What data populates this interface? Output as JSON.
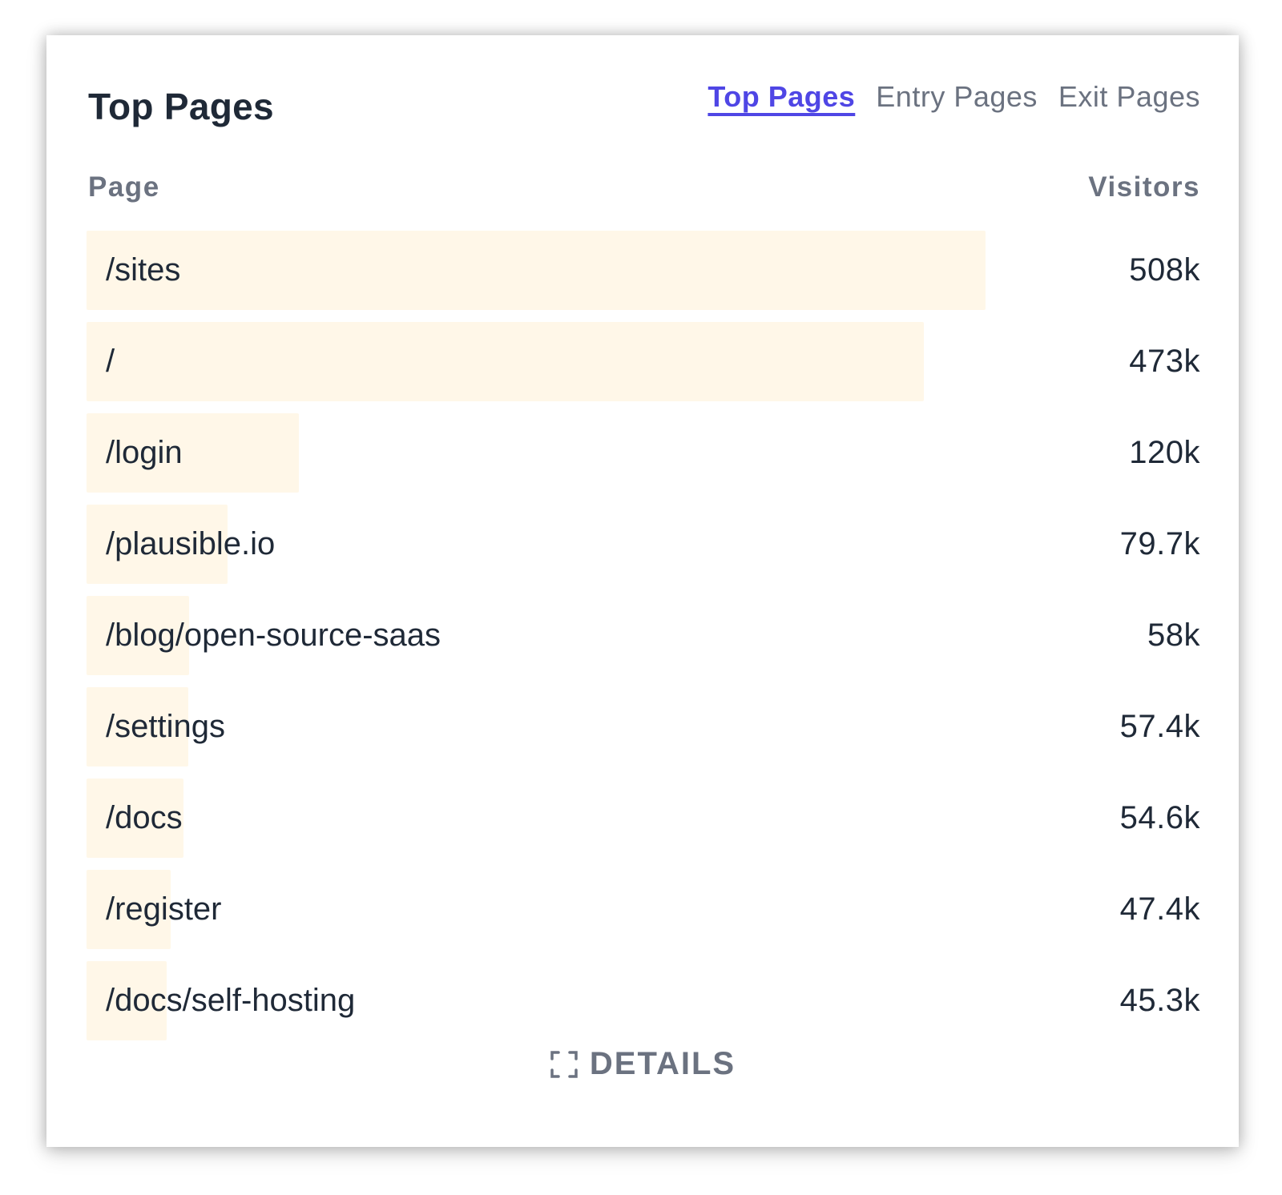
{
  "card": {
    "title": "Top Pages",
    "tabs": [
      {
        "label": "Top Pages",
        "active": true
      },
      {
        "label": "Entry Pages",
        "active": false
      },
      {
        "label": "Exit Pages",
        "active": false
      }
    ]
  },
  "table": {
    "columns": {
      "page": "Page",
      "visitors": "Visitors"
    },
    "bar_color": "#fff7e8",
    "rows": [
      {
        "page": "/sites",
        "visitors": "508k",
        "count": 508000
      },
      {
        "page": "/",
        "visitors": "473k",
        "count": 473000
      },
      {
        "page": "/login",
        "visitors": "120k",
        "count": 120000
      },
      {
        "page": "/plausible.io",
        "visitors": "79.7k",
        "count": 79700
      },
      {
        "page": "/blog/open-source-saas",
        "visitors": "58k",
        "count": 58000
      },
      {
        "page": "/settings",
        "visitors": "57.4k",
        "count": 57400
      },
      {
        "page": "/docs",
        "visitors": "54.6k",
        "count": 54600
      },
      {
        "page": "/register",
        "visitors": "47.4k",
        "count": 47400
      },
      {
        "page": "/docs/self-hosting",
        "visitors": "45.3k",
        "count": 45300
      }
    ]
  },
  "footer": {
    "details_label": "DETAILS",
    "details_icon": "expand-icon"
  },
  "colors": {
    "accent": "#4f46e5",
    "text": "#1f2937",
    "muted": "#6b7280"
  }
}
